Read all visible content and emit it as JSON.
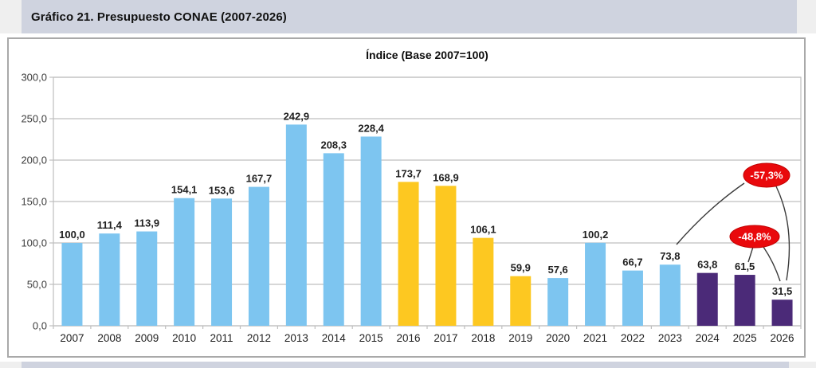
{
  "page": {
    "title": "Gráfico 21. Presupuesto CONAE (2007-2026)"
  },
  "chart_data": {
    "type": "bar",
    "title": "Índice (Base 2007=100)",
    "categories": [
      "2007",
      "2008",
      "2009",
      "2010",
      "2011",
      "2012",
      "2013",
      "2014",
      "2015",
      "2016",
      "2017",
      "2018",
      "2019",
      "2020",
      "2021",
      "2022",
      "2023",
      "2024",
      "2025",
      "2026"
    ],
    "values": [
      100.0,
      111.4,
      113.9,
      154.1,
      153.6,
      167.7,
      242.9,
      208.3,
      228.4,
      173.7,
      168.9,
      106.1,
      59.9,
      57.6,
      100.2,
      66.7,
      73.8,
      63.8,
      61.5,
      31.5
    ],
    "value_labels": [
      "100,0",
      "111,4",
      "113,9",
      "154,1",
      "153,6",
      "167,7",
      "242,9",
      "208,3",
      "228,4",
      "173,7",
      "168,9",
      "106,1",
      "59,9",
      "57,6",
      "100,2",
      "66,7",
      "73,8",
      "63,8",
      "61,5",
      "31,5"
    ],
    "bar_color_keys": [
      "blue",
      "blue",
      "blue",
      "blue",
      "blue",
      "blue",
      "blue",
      "blue",
      "blue",
      "yellow",
      "yellow",
      "yellow",
      "yellow",
      "blue",
      "blue",
      "blue",
      "blue",
      "purple",
      "purple",
      "purple"
    ],
    "colors": {
      "blue": "#7dc5f0",
      "yellow": "#fdc821",
      "purple": "#4b2a78",
      "annotation_red": "#e9090c",
      "grid": "#bfbfbf",
      "label_text": "#1f1f1f",
      "tick_text": "#3d3d3d"
    },
    "ylim": [
      0,
      300
    ],
    "grid": true,
    "legend": "none",
    "yticks": [
      {
        "value": 300,
        "label": "300,0"
      },
      {
        "value": 250,
        "label": "250,0"
      },
      {
        "value": 200,
        "label": "200,0"
      },
      {
        "value": 150,
        "label": "150,0"
      },
      {
        "value": 100,
        "label": "100,0"
      },
      {
        "value": 50,
        "label": "50,0"
      },
      {
        "value": 0,
        "label": "0,0"
      }
    ],
    "annotations": [
      {
        "label": "-57,3%",
        "connects": [
          "2023",
          "2026"
        ]
      },
      {
        "label": "-48,8%",
        "connects": [
          "2025",
          "2026"
        ]
      }
    ]
  }
}
